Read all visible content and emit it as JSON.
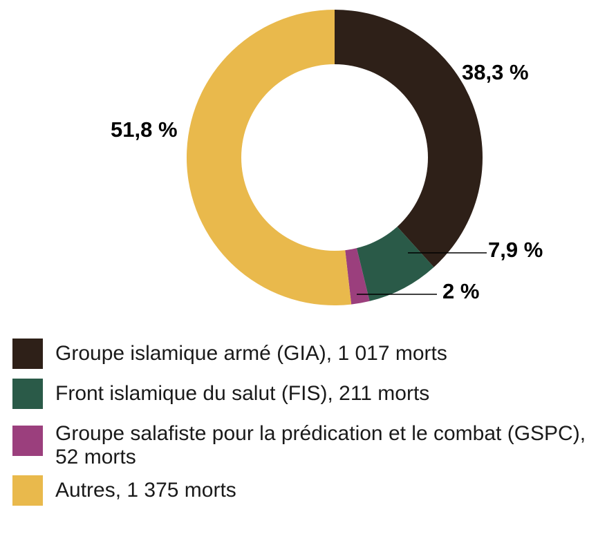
{
  "chart_data": {
    "type": "pie",
    "donut": true,
    "slices": [
      {
        "label": "Groupe islamique armé (GIA), 1 017 morts",
        "value": 38.3,
        "pct_label": "38,3 %",
        "color": "#2e2018"
      },
      {
        "label": "Front islamique du salut (FIS), 211 morts",
        "value": 7.9,
        "pct_label": "7,9 %",
        "color": "#2a5a48"
      },
      {
        "label": "Groupe salafiste pour la prédication et le combat (GSPC), 52 morts",
        "value": 2.0,
        "pct_label": "2 %",
        "color": "#9b3f7d"
      },
      {
        "label": "Autres, 1 375 morts",
        "value": 51.8,
        "pct_label": "51,8 %",
        "color": "#e9b94c"
      }
    ]
  }
}
